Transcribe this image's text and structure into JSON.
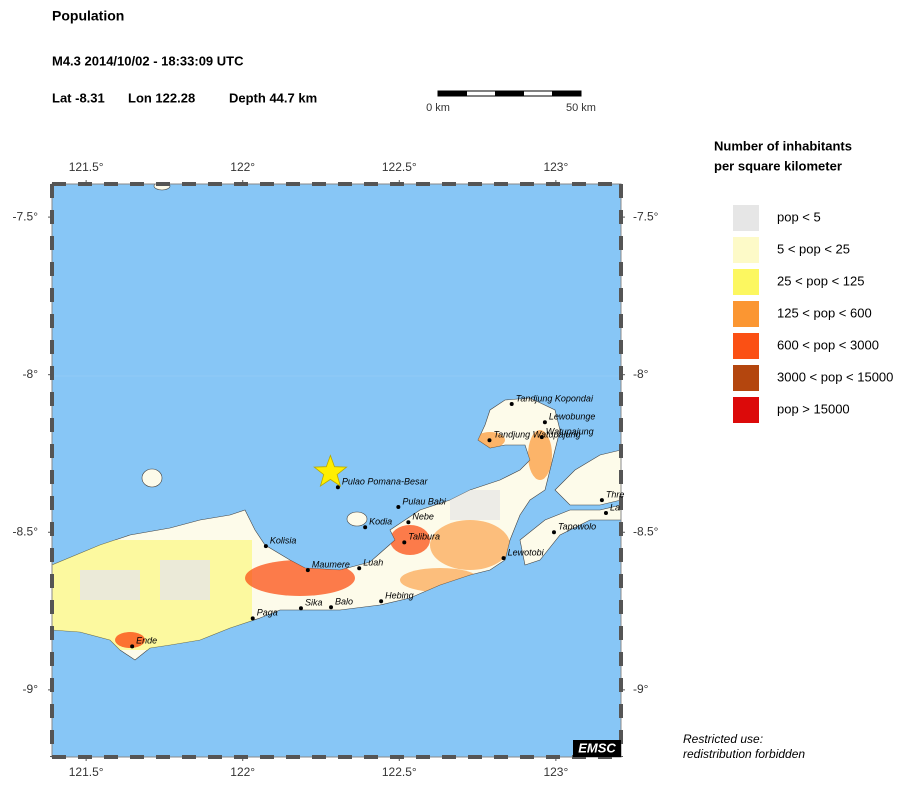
{
  "header": {
    "title": "Population",
    "event": "M4.3  2014/10/02 - 18:33:09 UTC",
    "lat": "Lat -8.31",
    "lon": "Lon 122.28",
    "depth": "Depth  44.7 km"
  },
  "scale_bar": {
    "start_label": "0 km",
    "end_label": "50 km"
  },
  "map": {
    "xlim": [
      121.391,
      123.208
    ],
    "ylim": [
      -9.213,
      -7.395
    ],
    "xticks": [
      {
        "value": 121.5,
        "label": "121.5°"
      },
      {
        "value": 122,
        "label": "122°"
      },
      {
        "value": 122.5,
        "label": "122.5°"
      },
      {
        "value": 123,
        "label": "123°"
      }
    ],
    "yticks": [
      {
        "value": -7.5,
        "label": "-7.5°"
      },
      {
        "value": -8,
        "label": "-8°"
      },
      {
        "value": -8.5,
        "label": "-8.5°"
      },
      {
        "value": -9,
        "label": "-9°"
      }
    ],
    "epicenter": {
      "lon": 122.28,
      "lat": -8.31,
      "color": "#ffee00"
    },
    "cities": [
      {
        "name": "Tandjung Kopondai",
        "lon": 122.859,
        "lat": -8.093
      },
      {
        "name": "Lewobunge",
        "lon": 122.965,
        "lat": -8.151
      },
      {
        "name": "Watupajung",
        "lon": 122.955,
        "lat": -8.198
      },
      {
        "name": "Tandjung Watupajung",
        "lon": 122.788,
        "lat": -8.208
      },
      {
        "name": "Pulao Pomana-Besar",
        "lon": 122.304,
        "lat": -8.357
      },
      {
        "name": "Pulau Babi",
        "lon": 122.497,
        "lat": -8.42
      },
      {
        "name": "Nebe",
        "lon": 122.529,
        "lat": -8.468
      },
      {
        "name": "Kodia",
        "lon": 122.391,
        "lat": -8.484
      },
      {
        "name": "Talibura",
        "lon": 122.516,
        "lat": -8.532
      },
      {
        "name": "Kolisia",
        "lon": 122.074,
        "lat": -8.544
      },
      {
        "name": "Maumere",
        "lon": 122.208,
        "lat": -8.62
      },
      {
        "name": "Luah",
        "lon": 122.372,
        "lat": -8.614
      },
      {
        "name": "Lewotobi",
        "lon": 122.833,
        "lat": -8.582
      },
      {
        "name": "Tapowolo",
        "lon": 122.994,
        "lat": -8.5
      },
      {
        "name": "Thre",
        "lon": 123.147,
        "lat": -8.398
      },
      {
        "name": "La",
        "lon": 123.16,
        "lat": -8.439
      },
      {
        "name": "Sika",
        "lon": 122.186,
        "lat": -8.741
      },
      {
        "name": "Balo",
        "lon": 122.282,
        "lat": -8.738
      },
      {
        "name": "Hebing",
        "lon": 122.442,
        "lat": -8.719
      },
      {
        "name": "Paga",
        "lon": 122.032,
        "lat": -8.773
      },
      {
        "name": "Ende",
        "lon": 121.647,
        "lat": -8.862
      }
    ],
    "credit": "EMSC"
  },
  "legend": {
    "title_line1": "Number of inhabitants",
    "title_line2": "per square kilometer",
    "items": [
      {
        "label": "pop < 5",
        "color": "#e6e6e6"
      },
      {
        "label": "5 < pop < 25",
        "color": "#fdfac8"
      },
      {
        "label": "25 < pop < 125",
        "color": "#fcf760"
      },
      {
        "label": "125 < pop < 600",
        "color": "#fb9632"
      },
      {
        "label": "600 < pop < 3000",
        "color": "#fb5014"
      },
      {
        "label": "3000 < pop < 15000",
        "color": "#b4460e"
      },
      {
        "label": "pop > 15000",
        "color": "#dc0a0a"
      }
    ]
  },
  "notice": {
    "line1": "Restricted use:",
    "line2": "redistribution forbidden"
  }
}
